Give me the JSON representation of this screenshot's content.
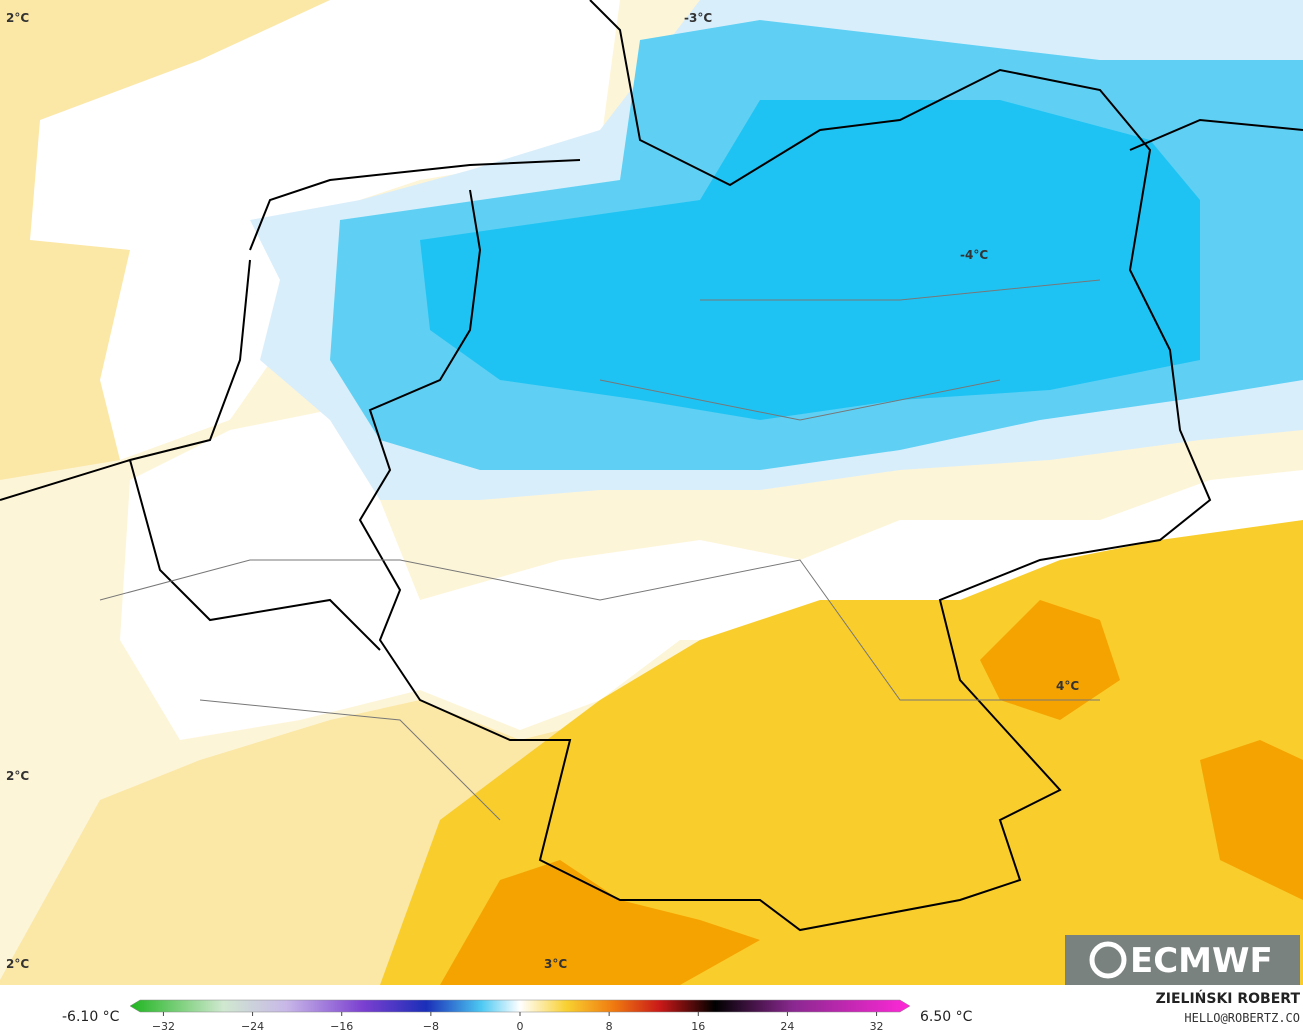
{
  "map": {
    "contour_labels": [
      "2°C",
      "-3°C",
      "-4°C",
      "4°C",
      "2°C",
      "2°C",
      "3°C"
    ]
  },
  "colorbar": {
    "min_label": "-6.10 °C",
    "max_label": "6.50 °C",
    "lim": [
      -35,
      35
    ],
    "ticks": [
      {
        "value": -32,
        "label": "−32"
      },
      {
        "value": -24,
        "label": "−24"
      },
      {
        "value": -16,
        "label": "−16"
      },
      {
        "value": -8,
        "label": "−8"
      },
      0,
      8,
      16,
      24,
      32
    ]
  },
  "credits": {
    "logo": "ECMWF",
    "author": "ZIELIŃSKI ROBERT",
    "contact": "HELLO@ROBERTZ.CO"
  }
}
